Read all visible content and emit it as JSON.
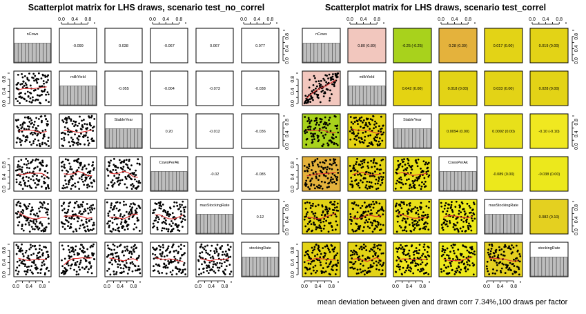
{
  "chart_data": [
    {
      "type": "scatter",
      "title": "Scatterplot matrix for LHS draws, scenario test_no_correl",
      "variables": [
        "nCows",
        "milkYield",
        "StableYear",
        "CowsPerAk",
        "maxStockingRate",
        "stockingRate"
      ],
      "axis_ticks": [
        "0.0",
        "0.4",
        "0.8"
      ],
      "xlim": [
        0,
        1
      ],
      "ylim": [
        0,
        1
      ],
      "correlations": [
        {
          "row": 0,
          "col": 1,
          "label": "-0.099"
        },
        {
          "row": 0,
          "col": 2,
          "label": "0.038"
        },
        {
          "row": 0,
          "col": 3,
          "label": "-0.067"
        },
        {
          "row": 0,
          "col": 4,
          "label": "0.067"
        },
        {
          "row": 0,
          "col": 5,
          "label": "0.077"
        },
        {
          "row": 1,
          "col": 2,
          "label": "-0.055"
        },
        {
          "row": 1,
          "col": 3,
          "label": "-0.004"
        },
        {
          "row": 1,
          "col": 4,
          "label": "-0.073"
        },
        {
          "row": 1,
          "col": 5,
          "label": "-0.038"
        },
        {
          "row": 2,
          "col": 3,
          "label": "0.20"
        },
        {
          "row": 2,
          "col": 4,
          "label": "-0.012"
        },
        {
          "row": 2,
          "col": 5,
          "label": "-0.036"
        },
        {
          "row": 3,
          "col": 4,
          "label": "-0.02"
        },
        {
          "row": 3,
          "col": 5,
          "label": "-0.085"
        },
        {
          "row": 4,
          "col": 5,
          "label": "0.12"
        }
      ],
      "draws_per_factor": 100,
      "fit_line_color": "#e03030",
      "point_color": "#000000",
      "histogram_bar_color": "#bebebe",
      "cell_colors": []
    },
    {
      "type": "scatter",
      "title": "Scatterplot matrix for LHS draws, scenario test_correl",
      "variables": [
        "nCows",
        "milkYield",
        "StableYear",
        "CowsPerAk",
        "maxStockingRate",
        "stockingRate"
      ],
      "axis_ticks": [
        "0.0",
        "0.4",
        "0.8"
      ],
      "xlim": [
        0,
        1
      ],
      "ylim": [
        0,
        1
      ],
      "correlations": [
        {
          "row": 0,
          "col": 1,
          "label": "0.80 (0.80)"
        },
        {
          "row": 0,
          "col": 2,
          "label": "-0.25 (-0.25)"
        },
        {
          "row": 0,
          "col": 3,
          "label": "0.28 (0.30)"
        },
        {
          "row": 0,
          "col": 4,
          "label": "0.017 (0.00)"
        },
        {
          "row": 0,
          "col": 5,
          "label": "0.019 (0.00)"
        },
        {
          "row": 1,
          "col": 2,
          "label": "0.042 (0.00)"
        },
        {
          "row": 1,
          "col": 3,
          "label": "0.018 (0.00)"
        },
        {
          "row": 1,
          "col": 4,
          "label": "0.033 (0.00)"
        },
        {
          "row": 1,
          "col": 5,
          "label": "0.028 (0.00)"
        },
        {
          "row": 2,
          "col": 3,
          "label": "0.0094 (0.00)"
        },
        {
          "row": 2,
          "col": 4,
          "label": "0.0092 (0.00)"
        },
        {
          "row": 2,
          "col": 5,
          "label": "-0.10 (-0.10)"
        },
        {
          "row": 3,
          "col": 4,
          "label": "-0.089 (0.00)"
        },
        {
          "row": 3,
          "col": 5,
          "label": "-0.038 (0.00)"
        },
        {
          "row": 4,
          "col": 5,
          "label": "0.082 (0.10)"
        }
      ],
      "pair_corr": [
        [
          1,
          0.8,
          -0.25,
          0.28,
          0.017,
          0.019
        ],
        [
          0.8,
          1,
          0.042,
          0.018,
          0.033,
          0.028
        ],
        [
          -0.25,
          0.042,
          1,
          0.0094,
          0.0092,
          -0.1
        ],
        [
          0.28,
          0.018,
          0.0094,
          1,
          -0.089,
          -0.038
        ],
        [
          0.017,
          0.033,
          0.0092,
          -0.089,
          1,
          0.082
        ],
        [
          0.019,
          0.028,
          -0.1,
          -0.038,
          0.082,
          1
        ]
      ],
      "cell_colors": [
        [
          null,
          "#f2c7be",
          "#a8d21c",
          "#e4b23c",
          "#e3d316",
          "#e3d316"
        ],
        [
          "#f2c7be",
          null,
          "#e4d312",
          "#e3d316",
          "#e3d316",
          "#e3d316"
        ],
        [
          "#a8d21c",
          "#e4d312",
          null,
          "#e8e01a",
          "#e8e01a",
          "#f0e820"
        ],
        [
          "#e4b23c",
          "#e3d316",
          "#e8e01a",
          null,
          "#ece81c",
          "#ece81c"
        ],
        [
          "#e3d316",
          "#e3d316",
          "#e8e01a",
          "#ece81c",
          null,
          "#e4d020"
        ],
        [
          "#e3d316",
          "#e3d316",
          "#f0e820",
          "#ece81c",
          "#e4d020",
          null
        ]
      ],
      "footer": "mean deviation between given and drawn corr 7.34%,100 draws per factor",
      "draws_per_factor": 100,
      "fit_line_color": "#e03030",
      "point_color": "#000000",
      "histogram_bar_color": "#bebebe"
    }
  ]
}
